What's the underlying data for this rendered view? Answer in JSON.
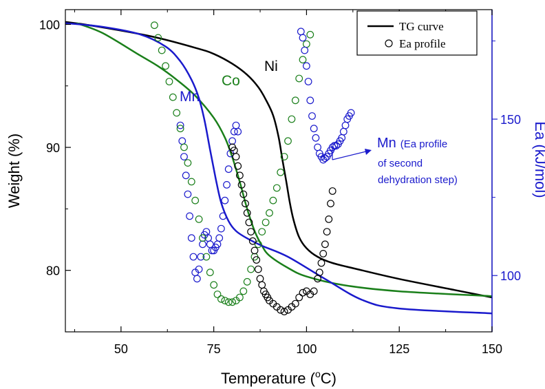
{
  "chart_data": {
    "type": "scatter",
    "title": "",
    "xlabel": "Temperature (",
    "xlabel_sup": "o",
    "xlabel_tail": "C)",
    "ylabel_left": "Weight (%)",
    "ylabel_right": "Ea (kJ/mol)",
    "xlim": [
      35,
      150
    ],
    "ylim_left": [
      75,
      101.2
    ],
    "ylim_right": [
      82,
      185
    ],
    "x_ticks": [
      50,
      75,
      100,
      125,
      150
    ],
    "y_left_ticks": [
      80,
      90,
      100
    ],
    "y_right_ticks": [
      100,
      150
    ],
    "legend": {
      "position": "top-right",
      "entries": [
        "TG curve",
        "Ea profile"
      ]
    },
    "annotations": {
      "ni": "Ni",
      "co": "Co",
      "mn": "Mn",
      "mn_note_head": "Mn",
      "mn_note_line1": "(Ea profile",
      "mn_note_line2": "of second",
      "mn_note_line3": "dehydration step)"
    },
    "colors": {
      "ni": "#000000",
      "co": "#1a7f1a",
      "mn": "#1a1acc",
      "axis_right": "#1a1acc"
    },
    "tg_series": [
      {
        "name": "Ni",
        "color": "#000000",
        "x": [
          35,
          40,
          50,
          60,
          70,
          75,
          80,
          84,
          87,
          89,
          91,
          92.5,
          93.5,
          94.5,
          95.5,
          96.5,
          98,
          100,
          103,
          107,
          115,
          125,
          140,
          150
        ],
        "y": [
          100.2,
          100,
          99.5,
          98.9,
          98.1,
          97.6,
          96.8,
          95.9,
          94.9,
          93.9,
          92.6,
          90.8,
          89,
          87.3,
          85.5,
          84.1,
          82.7,
          81.8,
          81.1,
          80.6,
          80,
          79.3,
          78.4,
          77.8
        ]
      },
      {
        "name": "Co",
        "color": "#1a7f1a",
        "x": [
          38,
          45,
          55,
          60,
          65,
          70,
          75,
          78,
          80,
          82,
          84,
          86,
          88,
          90,
          95,
          100,
          110,
          125,
          150
        ],
        "y": [
          100.1,
          99.3,
          97.5,
          96.6,
          95.5,
          94.2,
          92.4,
          90.8,
          89.2,
          87.2,
          85,
          83.2,
          82,
          81.2,
          80.2,
          79.5,
          78.8,
          78.3,
          77.9
        ]
      },
      {
        "name": "Mn",
        "color": "#1a1acc",
        "x": [
          35,
          45,
          55,
          62,
          66,
          69,
          71,
          72.5,
          74,
          75.5,
          77,
          79,
          81,
          84,
          88,
          95,
          105,
          115,
          125,
          150
        ],
        "y": [
          100.1,
          99.8,
          99.2,
          98.2,
          97,
          95.5,
          94,
          92.2,
          89.8,
          87.5,
          85.5,
          84,
          83.2,
          82.6,
          82,
          81.1,
          79.3,
          77.6,
          76.9,
          76.5
        ]
      }
    ],
    "ea_series": [
      {
        "name": "Mn",
        "color": "#1a1acc",
        "x": [
          66,
          66.5,
          67,
          67.5,
          68,
          68.5,
          69,
          69.5,
          70,
          70.5,
          71,
          71.5,
          72,
          72.5,
          73,
          73.5,
          74,
          74.5,
          75,
          75.5,
          76,
          76.5,
          77,
          77.5,
          78,
          78.5,
          79,
          79.5,
          80,
          80.5,
          81,
          81.5
        ],
        "y": [
          148,
          143,
          138,
          132,
          126,
          119,
          112,
          106,
          101,
          99,
          102,
          106,
          110,
          113,
          114,
          112,
          110,
          108,
          108,
          109,
          110,
          112,
          115,
          119,
          124,
          129,
          134,
          139,
          143,
          146,
          148,
          146
        ]
      },
      {
        "name": "Co",
        "color": "#1a7f1a",
        "x": [
          59,
          60,
          61,
          62,
          63,
          64,
          65,
          66,
          67,
          68,
          69,
          70,
          71,
          72,
          73,
          74,
          75,
          76,
          77,
          78,
          79,
          80,
          81,
          82,
          83,
          84,
          85,
          86,
          87,
          88,
          89,
          90,
          91,
          92,
          93,
          94,
          95,
          96,
          97,
          98,
          99,
          100,
          101
        ],
        "y": [
          180,
          176,
          172,
          167,
          162,
          157,
          152,
          147,
          141,
          136,
          130,
          124,
          118,
          112,
          106,
          101,
          97,
          94,
          92.5,
          92,
          91.5,
          91.5,
          92,
          93,
          95,
          98,
          102,
          106,
          110,
          114,
          117,
          120,
          124,
          128,
          133,
          138,
          143,
          150,
          156,
          163,
          169,
          174,
          177
        ]
      },
      {
        "name": "Ni",
        "color": "#000000",
        "x": [
          80,
          80.5,
          81,
          81.5,
          82,
          82.5,
          83,
          83.5,
          84,
          84.5,
          85,
          85.5,
          86,
          86.5,
          87,
          87.5,
          88,
          88.5,
          89,
          89.5,
          90,
          91,
          92,
          93,
          94,
          95,
          96,
          97,
          98,
          99,
          100,
          101,
          102,
          103,
          103.5,
          104,
          104.5,
          105,
          105.5,
          106,
          106.5,
          107
        ],
        "y": [
          141,
          140,
          138,
          135,
          132,
          129,
          126,
          123,
          120,
          117,
          114,
          111,
          108,
          105,
          102,
          99,
          97,
          95,
          94,
          93,
          92,
          91,
          90,
          89,
          88.5,
          89,
          90,
          91,
          93,
          94.5,
          95,
          94,
          95,
          99,
          101,
          104,
          107,
          110,
          114,
          118,
          123,
          127
        ]
      },
      {
        "name": "Mn (second step)",
        "color": "#1a1acc",
        "x": [
          98.5,
          99,
          99.5,
          100,
          100.5,
          101,
          101.5,
          102,
          102.5,
          103,
          103.5,
          104,
          104.5,
          105,
          105.5,
          106,
          106.5,
          107,
          107.5,
          108,
          108.5,
          109,
          109.5,
          110,
          110.5,
          111,
          111.5,
          112
        ],
        "y": [
          178,
          176,
          172,
          167,
          162,
          156,
          151,
          147,
          144,
          141,
          139,
          138,
          137,
          137.5,
          138,
          139,
          140,
          141,
          141.5,
          141.5,
          142,
          143,
          144,
          146,
          148,
          150,
          151,
          152
        ]
      }
    ]
  }
}
